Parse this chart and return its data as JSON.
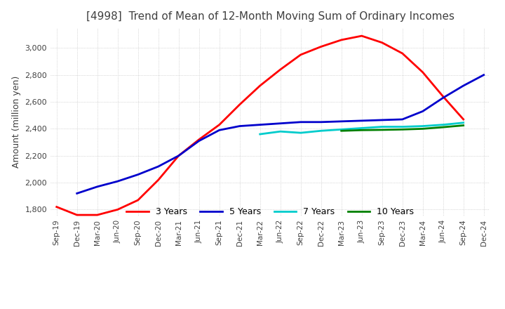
{
  "title": "[4998]  Trend of Mean of 12-Month Moving Sum of Ordinary Incomes",
  "ylabel": "Amount (million yen)",
  "ylim": [
    1750,
    3150
  ],
  "yticks": [
    1800,
    2000,
    2200,
    2400,
    2600,
    2800,
    3000
  ],
  "background_color": "#ffffff",
  "grid_color": "#bbbbbb",
  "title_color": "#404040",
  "x_labels": [
    "Sep-19",
    "Dec-19",
    "Mar-20",
    "Jun-20",
    "Sep-20",
    "Dec-20",
    "Mar-21",
    "Jun-21",
    "Sep-21",
    "Dec-21",
    "Mar-22",
    "Jun-22",
    "Sep-22",
    "Dec-22",
    "Mar-23",
    "Jun-23",
    "Sep-23",
    "Dec-23",
    "Mar-24",
    "Jun-24",
    "Sep-24",
    "Dec-24"
  ],
  "series": {
    "3 Years": {
      "color": "#ff0000",
      "data": [
        1820,
        1760,
        1760,
        1800,
        1870,
        2020,
        2200,
        2320,
        2430,
        2580,
        2720,
        2840,
        2950,
        3010,
        3060,
        3090,
        3040,
        2960,
        2820,
        2640,
        2470,
        null
      ]
    },
    "5 Years": {
      "color": "#0000cc",
      "data": [
        null,
        1920,
        1970,
        2010,
        2060,
        2120,
        2200,
        2310,
        2390,
        2420,
        2430,
        2440,
        2450,
        2450,
        2455,
        2460,
        2465,
        2470,
        2530,
        2630,
        2720,
        2800
      ]
    },
    "7 Years": {
      "color": "#00cccc",
      "data": [
        null,
        null,
        null,
        null,
        null,
        null,
        null,
        null,
        null,
        null,
        2360,
        2380,
        2370,
        2385,
        2395,
        2405,
        2415,
        2415,
        2420,
        2430,
        2445,
        null
      ]
    },
    "10 Years": {
      "color": "#008000",
      "data": [
        null,
        null,
        null,
        null,
        null,
        null,
        null,
        null,
        null,
        null,
        null,
        null,
        null,
        null,
        2385,
        2390,
        2392,
        2395,
        2400,
        2412,
        2425,
        null
      ]
    }
  },
  "legend_ncol": 4,
  "line_width": 2.0
}
